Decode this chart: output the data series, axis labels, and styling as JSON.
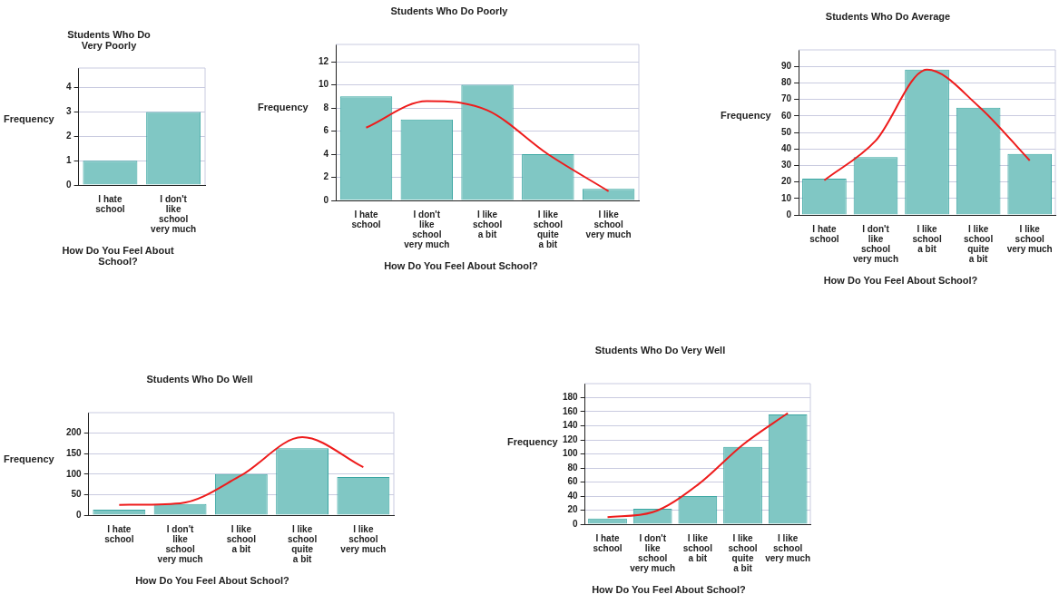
{
  "chart_data": [
    {
      "type": "bar",
      "title": "Students Who Do Very Poorly",
      "xlabel": "How Do You Feel About School?",
      "ylabel": "Frequency",
      "categories": [
        "I hate school",
        "I don't like school very much"
      ],
      "series": [
        {
          "color": "#80c7c4",
          "values": [
            1,
            3
          ]
        }
      ],
      "ylim": [
        0,
        4.8
      ],
      "yticks": [
        0,
        1,
        2,
        3,
        4
      ],
      "grid": "y",
      "legend": false
    },
    {
      "type": "bar",
      "title": "Students Who Do Poorly",
      "xlabel": "How Do You Feel About School?",
      "ylabel": "Frequency",
      "categories": [
        "I hate school",
        "I don't like school very much",
        "I like school a bit",
        "I like school quite a bit",
        "I like school very much"
      ],
      "series": [
        {
          "color": "#80c7c4",
          "values": [
            9,
            7,
            10,
            4,
            1
          ]
        },
        {
          "type": "line",
          "color": "#ee1c1c",
          "marker": "none",
          "values": [
            6.3,
            8.6,
            7.8,
            4,
            0.8
          ]
        }
      ],
      "ylim": [
        0,
        13.5
      ],
      "yticks": [
        0,
        2,
        4,
        6,
        8,
        10,
        12
      ],
      "grid": "y",
      "legend": false
    },
    {
      "type": "bar",
      "title": "Students Who Do Average",
      "xlabel": "How Do You Feel About School?",
      "ylabel": "Frequency",
      "categories": [
        "I hate school",
        "I don't like school very much",
        "I like school a bit",
        "I like school quite a bit",
        "I like school very much"
      ],
      "series": [
        {
          "color": "#80c7c4",
          "values": [
            22,
            35,
            88,
            65,
            37
          ]
        },
        {
          "type": "line",
          "color": "#ee1c1c",
          "marker": "none",
          "values": [
            21,
            45,
            88,
            66,
            33
          ]
        }
      ],
      "ylim": [
        0,
        100
      ],
      "yticks": [
        0,
        10,
        20,
        30,
        40,
        50,
        60,
        70,
        80,
        90
      ],
      "grid": "y",
      "legend": false
    },
    {
      "type": "bar",
      "title": "Students Who Do Well",
      "xlabel": "How Do You Feel About School?",
      "ylabel": "Frequency",
      "categories": [
        "I hate school",
        "I don't like school very much",
        "I like school a bit",
        "I like school quite a bit",
        "I like school very much"
      ],
      "series": [
        {
          "color": "#80c7c4",
          "values": [
            13,
            27,
            100,
            163,
            93
          ]
        },
        {
          "type": "line",
          "color": "#ee1c1c",
          "marker": "none",
          "values": [
            25,
            29,
            97,
            190,
            117
          ]
        }
      ],
      "ylim": [
        0,
        250
      ],
      "yticks": [
        0,
        50,
        100,
        150,
        200
      ],
      "grid": "y",
      "legend": false
    },
    {
      "type": "bar",
      "title": "Students Who Do Very Well",
      "xlabel": "How Do You Feel About School?",
      "ylabel": "Frequency",
      "categories": [
        "I hate school",
        "I don't like school very much",
        "I like school a bit",
        "I like school quite a bit",
        "I like school very much"
      ],
      "series": [
        {
          "color": "#80c7c4",
          "values": [
            8,
            22,
            40,
            110,
            156
          ]
        },
        {
          "type": "line",
          "color": "#ee1c1c",
          "marker": "none",
          "values": [
            10,
            17,
            56,
            113,
            158
          ]
        }
      ],
      "ylim": [
        0,
        200
      ],
      "yticks": [
        0,
        20,
        40,
        60,
        80,
        100,
        120,
        140,
        160,
        180
      ],
      "grid": "y",
      "legend": false
    }
  ]
}
